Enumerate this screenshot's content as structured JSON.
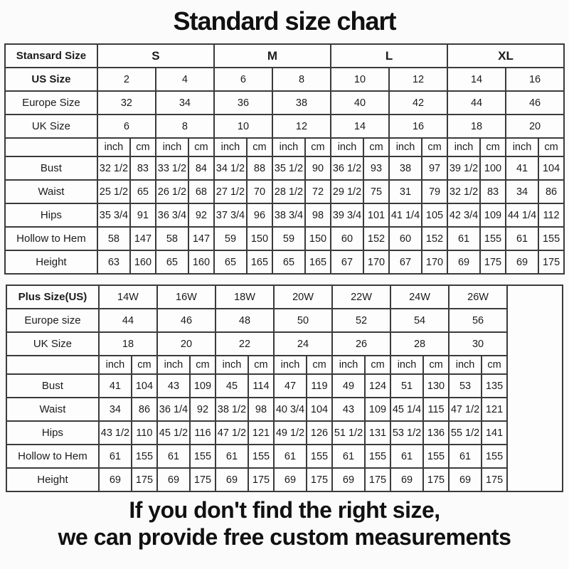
{
  "title": "Standard size chart",
  "standard_table": {
    "corner_label": "Stansard Size",
    "size_groups": [
      "S",
      "M",
      "L",
      "XL"
    ],
    "us_size": {
      "label": "US Size",
      "values": [
        "2",
        "4",
        "6",
        "8",
        "10",
        "12",
        "14",
        "16"
      ]
    },
    "europe_size": {
      "label": "Europe Size",
      "values": [
        "32",
        "34",
        "36",
        "38",
        "40",
        "42",
        "44",
        "46"
      ]
    },
    "uk_size": {
      "label": "UK Size",
      "values": [
        "6",
        "8",
        "10",
        "12",
        "14",
        "16",
        "18",
        "20"
      ]
    },
    "unit_cells": [
      "inch",
      "cm",
      "inch",
      "cm",
      "inch",
      "cm",
      "inch",
      "cm",
      "inch",
      "cm",
      "inch",
      "cm",
      "inch",
      "cm",
      "inch",
      "cm"
    ],
    "rows": [
      {
        "label": "Bust",
        "values": [
          "32 1/2",
          "83",
          "33 1/2",
          "84",
          "34 1/2",
          "88",
          "35 1/2",
          "90",
          "36 1/2",
          "93",
          "38",
          "97",
          "39 1/2",
          "100",
          "41",
          "104"
        ]
      },
      {
        "label": "Waist",
        "values": [
          "25 1/2",
          "65",
          "26 1/2",
          "68",
          "27 1/2",
          "70",
          "28 1/2",
          "72",
          "29 1/2",
          "75",
          "31",
          "79",
          "32 1/2",
          "83",
          "34",
          "86"
        ]
      },
      {
        "label": "Hips",
        "values": [
          "35 3/4",
          "91",
          "36 3/4",
          "92",
          "37 3/4",
          "96",
          "38 3/4",
          "98",
          "39 3/4",
          "101",
          "41 1/4",
          "105",
          "42 3/4",
          "109",
          "44 1/4",
          "112"
        ]
      },
      {
        "label": "Hollow to Hem",
        "values": [
          "58",
          "147",
          "58",
          "147",
          "59",
          "150",
          "59",
          "150",
          "60",
          "152",
          "60",
          "152",
          "61",
          "155",
          "61",
          "155"
        ]
      },
      {
        "label": "Height",
        "values": [
          "63",
          "160",
          "65",
          "160",
          "65",
          "165",
          "65",
          "165",
          "67",
          "170",
          "67",
          "170",
          "69",
          "175",
          "69",
          "175"
        ]
      }
    ]
  },
  "plus_table": {
    "corner_label": "Plus Size(US)",
    "size_groups": [
      "14W",
      "16W",
      "18W",
      "20W",
      "22W",
      "24W",
      "26W"
    ],
    "europe_size": {
      "label": "Europe size",
      "values": [
        "44",
        "46",
        "48",
        "50",
        "52",
        "54",
        "56"
      ]
    },
    "uk_size": {
      "label": "UK Size",
      "values": [
        "18",
        "20",
        "22",
        "24",
        "26",
        "28",
        "30"
      ]
    },
    "unit_cells": [
      "inch",
      "cm",
      "inch",
      "cm",
      "inch",
      "cm",
      "inch",
      "cm",
      "inch",
      "cm",
      "inch",
      "cm",
      "inch",
      "cm"
    ],
    "rows": [
      {
        "label": "Bust",
        "values": [
          "41",
          "104",
          "43",
          "109",
          "45",
          "114",
          "47",
          "119",
          "49",
          "124",
          "51",
          "130",
          "53",
          "135"
        ]
      },
      {
        "label": "Waist",
        "values": [
          "34",
          "86",
          "36 1/4",
          "92",
          "38 1/2",
          "98",
          "40 3/4",
          "104",
          "43",
          "109",
          "45 1/4",
          "115",
          "47 1/2",
          "121"
        ]
      },
      {
        "label": "Hips",
        "values": [
          "43 1/2",
          "110",
          "45 1/2",
          "116",
          "47 1/2",
          "121",
          "49 1/2",
          "126",
          "51 1/2",
          "131",
          "53 1/2",
          "136",
          "55 1/2",
          "141"
        ]
      },
      {
        "label": "Hollow to Hem",
        "values": [
          "61",
          "155",
          "61",
          "155",
          "61",
          "155",
          "61",
          "155",
          "61",
          "155",
          "61",
          "155",
          "61",
          "155"
        ]
      },
      {
        "label": "Height",
        "values": [
          "69",
          "175",
          "69",
          "175",
          "69",
          "175",
          "69",
          "175",
          "69",
          "175",
          "69",
          "175",
          "69",
          "175"
        ]
      }
    ]
  },
  "footer": {
    "line1": "If you don't find the right size,",
    "line2": "we can provide free custom measurements"
  }
}
